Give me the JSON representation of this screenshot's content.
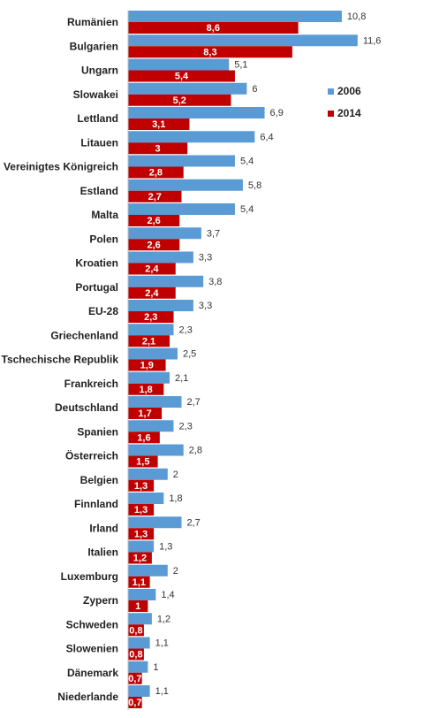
{
  "chart_data": {
    "type": "bar",
    "orientation": "horizontal",
    "categories": [
      "Rumänien",
      "Bulgarien",
      "Ungarn",
      "Slowakei",
      "Lettland",
      "Litauen",
      "Vereinigtes Königreich",
      "Estland",
      "Malta",
      "Polen",
      "Kroatien",
      "Portugal",
      "EU-28",
      "Griechenland",
      "Tschechische Republik",
      "Frankreich",
      "Deutschland",
      "Spanien",
      "Österreich",
      "Belgien",
      "Finnland",
      "Irland",
      "Italien",
      "Luxemburg",
      "Zypern",
      "Schweden",
      "Slowenien",
      "Dänemark",
      "Niederlande"
    ],
    "series": [
      {
        "name": "2006",
        "color": "#5b9bd5",
        "values": [
          10.8,
          11.6,
          5.1,
          6,
          6.9,
          6.4,
          5.4,
          5.8,
          5.4,
          3.7,
          3.3,
          3.8,
          3.3,
          2.3,
          2.5,
          2.1,
          2.7,
          2.3,
          2.8,
          2,
          1.8,
          2.7,
          1.3,
          2,
          1.4,
          1.2,
          1.1,
          1,
          1.1
        ],
        "labels": [
          "10,8",
          "11,6",
          "5,1",
          "6",
          "6,9",
          "6,4",
          "5,4",
          "5,8",
          "5,4",
          "3,7",
          "3,3",
          "3,8",
          "3,3",
          "2,3",
          "2,5",
          "2,1",
          "2,7",
          "2,3",
          "2,8",
          "2",
          "1,8",
          "2,7",
          "1,3",
          "2",
          "1,4",
          "1,2",
          "1,1",
          "1",
          "1,1"
        ]
      },
      {
        "name": "2014",
        "color": "#c00000",
        "values": [
          8.6,
          8.3,
          5.4,
          5.2,
          3.1,
          3,
          2.8,
          2.7,
          2.6,
          2.6,
          2.4,
          2.4,
          2.3,
          2.1,
          1.9,
          1.8,
          1.7,
          1.6,
          1.5,
          1.3,
          1.3,
          1.3,
          1.2,
          1.1,
          1,
          0.8,
          0.8,
          0.7,
          0.7
        ],
        "labels": [
          "8,6",
          "8,3",
          "5,4",
          "5,2",
          "3,1",
          "3",
          "2,8",
          "2,7",
          "2,6",
          "2,6",
          "2,4",
          "2,4",
          "2,3",
          "2,1",
          "1,9",
          "1,8",
          "1,7",
          "1,6",
          "1,5",
          "1,3",
          "1,3",
          "1,3",
          "1,2",
          "1,1",
          "1",
          "0,8",
          "0,8",
          "0,7",
          "0,7"
        ]
      }
    ],
    "legend_position": "right",
    "grid": false
  }
}
